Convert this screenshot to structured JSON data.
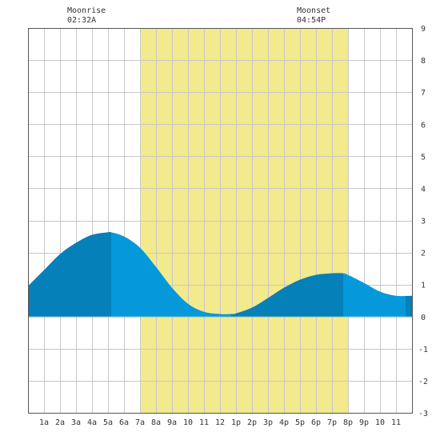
{
  "chart_data": {
    "type": "area",
    "x_unit": "hour of day",
    "xlim": [
      0,
      24
    ],
    "ylim": [
      -3,
      9
    ],
    "y_ticks": [
      -3,
      -2,
      -1,
      0,
      1,
      2,
      3,
      4,
      5,
      6,
      7,
      8,
      9
    ],
    "x_ticks": [
      {
        "x": 1,
        "label": "1a"
      },
      {
        "x": 2,
        "label": "2a"
      },
      {
        "x": 3,
        "label": "3a"
      },
      {
        "x": 4,
        "label": "4a"
      },
      {
        "x": 5,
        "label": "5a"
      },
      {
        "x": 6,
        "label": "6a"
      },
      {
        "x": 7,
        "label": "7a"
      },
      {
        "x": 8,
        "label": "8a"
      },
      {
        "x": 9,
        "label": "9a"
      },
      {
        "x": 10,
        "label": "10"
      },
      {
        "x": 11,
        "label": "11"
      },
      {
        "x": 12,
        "label": "12"
      },
      {
        "x": 13,
        "label": "1p"
      },
      {
        "x": 14,
        "label": "2p"
      },
      {
        "x": 15,
        "label": "3p"
      },
      {
        "x": 16,
        "label": "4p"
      },
      {
        "x": 17,
        "label": "5p"
      },
      {
        "x": 18,
        "label": "6p"
      },
      {
        "x": 19,
        "label": "7p"
      },
      {
        "x": 20,
        "label": "8p"
      },
      {
        "x": 21,
        "label": "9p"
      },
      {
        "x": 22,
        "label": "10"
      },
      {
        "x": 23,
        "label": "11"
      }
    ],
    "grid": true,
    "daylight": {
      "start": 7.0,
      "end": 20.0,
      "color": "#f2ea8c"
    },
    "series": [
      {
        "x": [
          0,
          1,
          2,
          3,
          4,
          5,
          5.2,
          6,
          7,
          8,
          9,
          10,
          11,
          12,
          12.7,
          13,
          14,
          15,
          16,
          17,
          18,
          19,
          19.7,
          20,
          21,
          22,
          23,
          24
        ],
        "y": [
          0.95,
          1.45,
          1.95,
          2.3,
          2.55,
          2.63,
          2.63,
          2.5,
          2.15,
          1.55,
          0.9,
          0.4,
          0.15,
          0.08,
          0.08,
          0.1,
          0.28,
          0.58,
          0.9,
          1.15,
          1.3,
          1.35,
          1.35,
          1.3,
          1.05,
          0.78,
          0.65,
          0.65
        ]
      }
    ],
    "tide_shades": [
      {
        "start": 0.0,
        "end": 5.2,
        "color": "#0580b8"
      },
      {
        "start": 5.2,
        "end": 12.7,
        "color": "#0599dc"
      },
      {
        "start": 12.7,
        "end": 19.7,
        "color": "#0580b8"
      },
      {
        "start": 19.7,
        "end": 23.6,
        "color": "#0599dc"
      },
      {
        "start": 23.6,
        "end": 24.0,
        "color": "#0580b8"
      }
    ],
    "annotations": {
      "moonrise": {
        "label": "Moonrise",
        "time": "02:32A"
      },
      "moonset": {
        "label": "Moonset",
        "time": "04:54P"
      }
    }
  }
}
